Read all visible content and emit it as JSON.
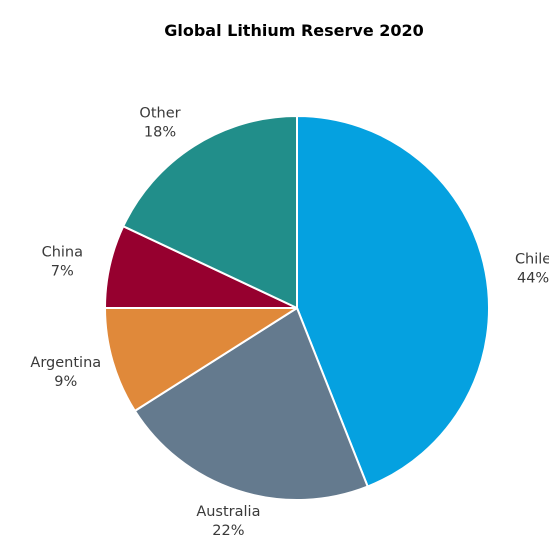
{
  "chart_data": {
    "type": "pie",
    "title": "Global Lithium Reserve 2020",
    "categories": [
      "Chile",
      "Australia",
      "Argentina",
      "China",
      "Other"
    ],
    "values": [
      44,
      22,
      9,
      7,
      18
    ],
    "value_labels": [
      "44%",
      "22%",
      "9%",
      "7%",
      "18%"
    ],
    "colors": [
      "#05A1E0",
      "#647A8E",
      "#E0893A",
      "#96002F",
      "#218E8A"
    ],
    "start_angle": "12 o'clock",
    "direction": "clockwise",
    "legend": "none"
  }
}
